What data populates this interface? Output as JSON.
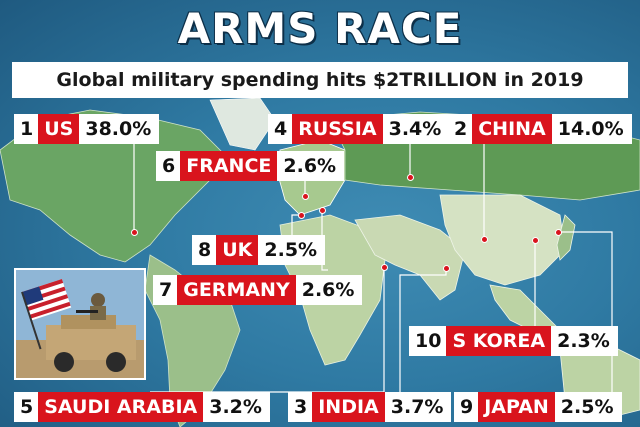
{
  "headline": "ARMS RACE",
  "subtitle": "Global military spending hits $2TRILLION in 2019",
  "colors": {
    "accent_red": "#d9141d",
    "ocean": "#2f7aa3",
    "land_highlight": "#5f9a5a"
  },
  "countries": [
    {
      "rank": "1",
      "name": "US",
      "pct": "38.0%"
    },
    {
      "rank": "4",
      "name": "RUSSIA",
      "pct": "3.4%"
    },
    {
      "rank": "2",
      "name": "CHINA",
      "pct": "14.0%"
    },
    {
      "rank": "6",
      "name": "FRANCE",
      "pct": "2.6%"
    },
    {
      "rank": "8",
      "name": "UK",
      "pct": "2.5%"
    },
    {
      "rank": "7",
      "name": "GERMANY",
      "pct": "2.6%"
    },
    {
      "rank": "10",
      "name": "S KOREA",
      "pct": "2.3%"
    },
    {
      "rank": "5",
      "name": "SAUDI ARABIA",
      "pct": "3.2%"
    },
    {
      "rank": "3",
      "name": "INDIA",
      "pct": "3.7%"
    },
    {
      "rank": "9",
      "name": "JAPAN",
      "pct": "2.5%"
    }
  ],
  "photo_icon": "soldier-with-us-flag-photo"
}
